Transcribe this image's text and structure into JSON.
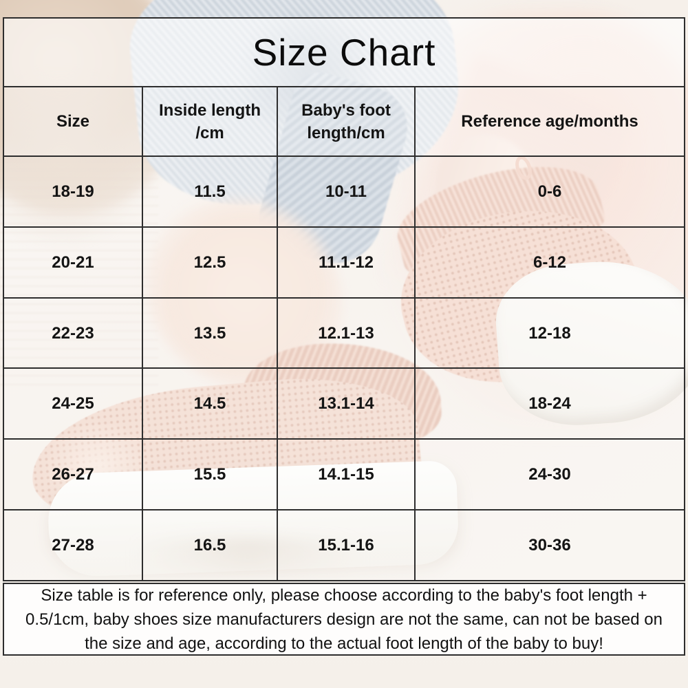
{
  "page_title": "Size Chart",
  "header": {
    "size": [
      "Size"
    ],
    "inside_length": [
      "Inside length",
      "/cm"
    ],
    "foot_length": [
      "Baby's foot",
      "length/cm"
    ],
    "reference_age": [
      "Reference age/months"
    ]
  },
  "chart_data": {
    "type": "table",
    "title": "Size Chart",
    "columns": [
      "Size",
      "Inside length /cm",
      "Baby's foot length/cm",
      "Reference age/months"
    ],
    "rows": [
      [
        "18-19",
        "11.5",
        "10-11",
        "0-6"
      ],
      [
        "20-21",
        "12.5",
        "11.1-12",
        "6-12"
      ],
      [
        "22-23",
        "13.5",
        "12.1-13",
        "12-18"
      ],
      [
        "24-25",
        "14.5",
        "13.1-14",
        "18-24"
      ],
      [
        "26-27",
        "15.5",
        "14.1-15",
        "24-30"
      ],
      [
        "27-28",
        "16.5",
        "15.1-16",
        "30-36"
      ]
    ],
    "note": "Size table is for reference only, please choose according to the baby's foot length + 0.5/1cm, baby shoes size manufacturers design are not the same, can not be based on the size and age, according to the actual foot length of the baby to buy!"
  },
  "disclaimer": {
    "lines": [
      "Size table is for reference only, please choose according to the baby's foot length +",
      "0.5/1cm, baby shoes size manufacturers design are not the same, can not be based on",
      "the size and age, according to the actual foot length of the baby to buy!"
    ]
  },
  "colors": {
    "table_line": "#2d2d2d",
    "text": "#141414",
    "shoe_knit_pink": "#f2d3c4",
    "denim_blue_gray": "#b9c6d2",
    "blanket_beige": "#e5d3c1",
    "bedding_pink": "#f6ded3",
    "sole_white": "#fcfbf8"
  }
}
